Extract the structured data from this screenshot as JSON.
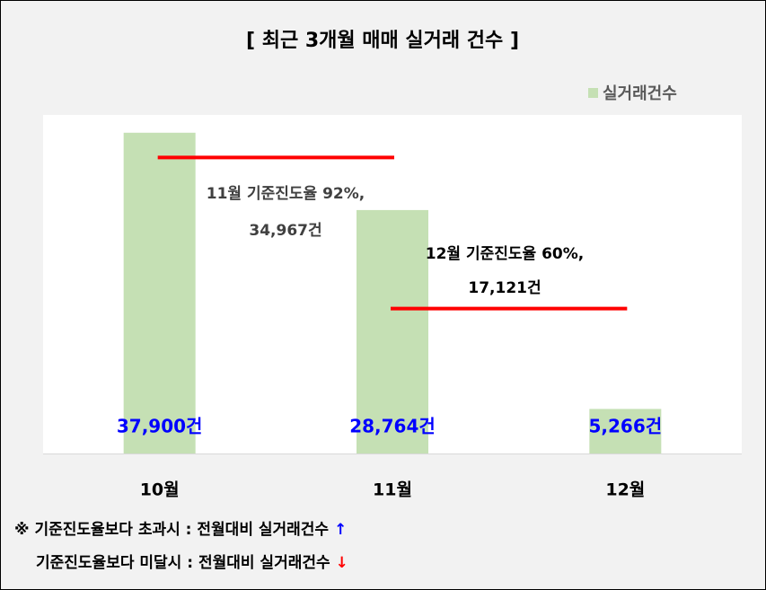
{
  "chart_data": {
    "type": "bar",
    "title": "[ 최근 3개월  매매 실거래 건수 ]",
    "categories": [
      "10월",
      "11월",
      "12월"
    ],
    "series": [
      {
        "name": "실거래건수",
        "color": "#c5e0b4",
        "values": [
          37900,
          28764,
          5266
        ],
        "value_labels": [
          "37,900건",
          "28,764건",
          "5,266건"
        ],
        "label_color": "#0000ff"
      }
    ],
    "ylim": [
      0,
      40000
    ],
    "legend": "top-right",
    "reference_lines": [
      {
        "value": 34967,
        "text": "11월 기준진도율 92%,",
        "value_label": "34,967건",
        "color": "#ff0000"
      },
      {
        "value": 17121,
        "text": "12월 기준진도율 60%,",
        "value_label": "17,121건",
        "color": "#ff0000"
      }
    ],
    "notes": [
      {
        "text": "※ 기준진도율보다 초과시 : 전월대비 실거래건수",
        "arrow": "↑",
        "arrow_color": "#0000ff"
      },
      {
        "text": "기준진도율보다 미달시 : 전월대비 실거래건수",
        "arrow": "↓",
        "arrow_color": "#ff0000"
      }
    ]
  }
}
